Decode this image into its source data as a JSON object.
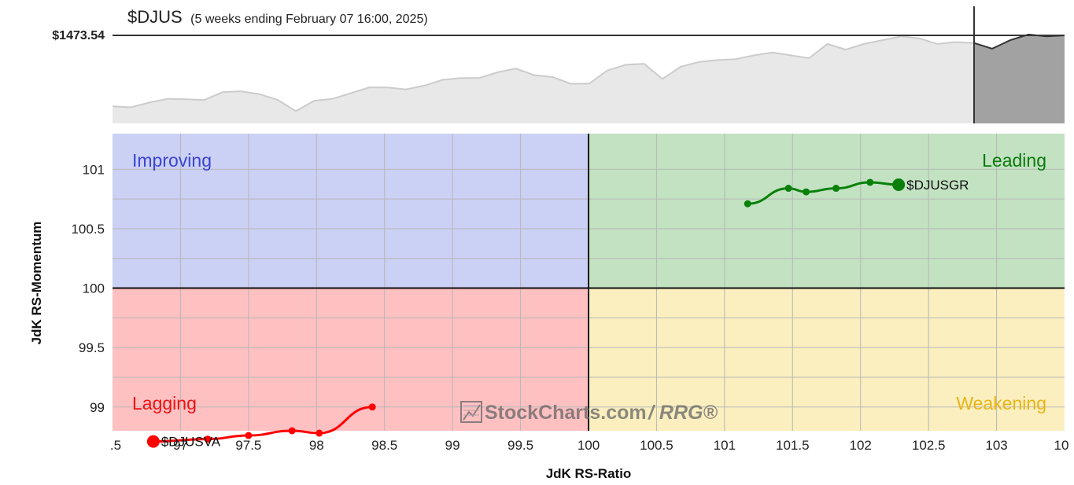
{
  "header": {
    "symbol": "$DJUS",
    "subtitle": "(5 weeks ending February 07 16:00, 2025)",
    "price_label": "$1473.54"
  },
  "colors": {
    "improving": "#cbd0f5",
    "leading": "#c2e2c2",
    "lagging": "#ffc0c2",
    "weakening": "#fbefbf",
    "improving_text": "#3a44d4",
    "leading_text": "#0b7a0b",
    "lagging_text": "#ee1111",
    "weakening_text": "#e8b516",
    "series_green": "#0a800a",
    "series_red": "#ff0000",
    "price_fill": "#e8e8e8",
    "price_line": "#cccccc",
    "price_recent_fill": "#a2a2a2"
  },
  "quadrants": {
    "improving": "Improving",
    "leading": "Leading",
    "lagging": "Lagging",
    "weakening": "Weakening"
  },
  "watermark": {
    "brand": "StockCharts.com",
    "suffix": "/ RRG®"
  },
  "chart_data": [
    {
      "type": "area",
      "title": "$DJUS",
      "current_value": 1473.54,
      "values": [
        1436,
        1435.5,
        1438,
        1440,
        1439.8,
        1439.4,
        1443.5,
        1444,
        1442.5,
        1439.5,
        1433.5,
        1439,
        1440,
        1443,
        1446,
        1446,
        1445,
        1447,
        1450,
        1451,
        1451,
        1454,
        1456,
        1452.5,
        1451.5,
        1448,
        1448,
        1455,
        1458,
        1458.5,
        1450.5,
        1457,
        1459.5,
        1460.5,
        1461,
        1463,
        1464.5,
        1463,
        1461.5,
        1469,
        1466,
        1469,
        1471,
        1473,
        1472,
        1469,
        1470,
        1469.5
      ],
      "recent_values": [
        1469.5,
        1466.5,
        1471,
        1474,
        1473,
        1473.54
      ],
      "legend": "none"
    },
    {
      "type": "scatter",
      "xlabel": "JdK RS-Ratio",
      "ylabel": "JdK RS-Momentum",
      "xlim": [
        96.5,
        103.5
      ],
      "ylim": [
        98.8,
        101.3
      ],
      "x_ticks": [
        ".5",
        "97",
        "97.5",
        "98",
        "98.5",
        "99",
        "99.5",
        "100",
        "100.5",
        "101",
        "101.5",
        "102",
        "102.5",
        "103",
        "10"
      ],
      "y_ticks": [
        "101",
        "100.5",
        "100",
        "99.5",
        "99"
      ],
      "center": [
        100,
        100
      ],
      "grid": true,
      "series": [
        {
          "name": "$DJUSGR",
          "x": [
            101.17,
            101.47,
            101.6,
            101.82,
            102.07,
            102.28
          ],
          "y": [
            100.71,
            100.84,
            100.81,
            100.84,
            100.89,
            100.87
          ]
        },
        {
          "name": "$DJUSVA",
          "x": [
            98.41,
            98.02,
            97.82,
            97.5,
            97.2,
            96.8
          ],
          "y": [
            99.0,
            98.78,
            98.8,
            98.76,
            98.73,
            98.71
          ]
        }
      ]
    }
  ]
}
